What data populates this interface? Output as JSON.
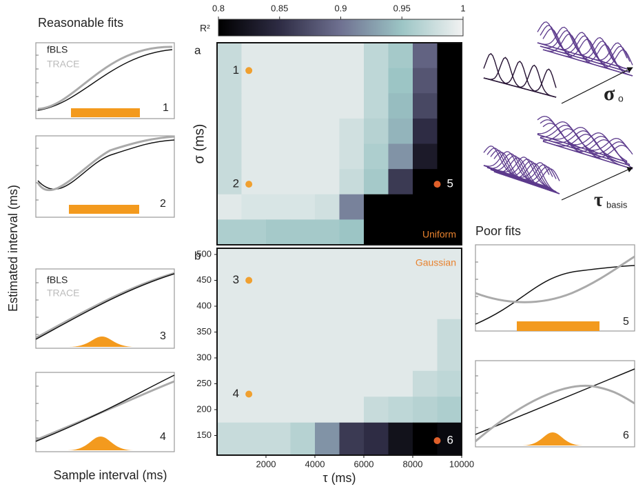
{
  "figure": {
    "left_title": "Reasonable fits",
    "right_title": "Poor fits",
    "y_label": "Estimated interval (ms)",
    "x_label": "Sample interval (ms)",
    "legend_black": "fBLS",
    "legend_gray": "TRACE",
    "panels": [
      "1",
      "2",
      "3",
      "4",
      "5",
      "6"
    ],
    "sigma_symbol": "σ",
    "sigma_sub": "o",
    "tau_symbol": "τ",
    "tau_sub": "basis"
  },
  "chart_data": [
    {
      "type": "colorbar",
      "title": "R²",
      "xlim": [
        0.8,
        1
      ],
      "xticks": [
        0.8,
        0.85,
        0.9,
        0.95,
        1
      ],
      "colors": [
        "#000000",
        "#2e2c44",
        "#6f7191",
        "#9cc5c5",
        "#f2f2f2"
      ]
    },
    {
      "type": "heatmap",
      "label": "a",
      "annotation": "Uniform",
      "annotation_color": "#e8822e",
      "y_label": "σ (ms)",
      "xlim": [
        0,
        10000
      ],
      "values": [
        [
          0.975,
          0.99,
          0.99,
          0.99,
          0.99,
          0.99,
          0.97,
          0.955,
          0.89,
          0.8
        ],
        [
          0.975,
          0.99,
          0.99,
          0.99,
          0.99,
          0.99,
          0.97,
          0.95,
          0.88,
          0.8
        ],
        [
          0.975,
          0.99,
          0.99,
          0.99,
          0.99,
          0.99,
          0.97,
          0.945,
          0.87,
          0.8
        ],
        [
          0.975,
          0.99,
          0.99,
          0.99,
          0.99,
          0.98,
          0.965,
          0.94,
          0.85,
          0.8
        ],
        [
          0.975,
          0.99,
          0.99,
          0.99,
          0.99,
          0.98,
          0.96,
          0.92,
          0.83,
          0.8
        ],
        [
          0.975,
          0.99,
          0.99,
          0.99,
          0.99,
          0.975,
          0.955,
          0.86,
          0.8,
          0.8
        ],
        [
          0.99,
          0.985,
          0.985,
          0.985,
          0.98,
          0.91,
          0.8,
          0.8,
          0.8,
          0.8
        ],
        [
          0.96,
          0.96,
          0.955,
          0.955,
          0.955,
          0.95,
          0.8,
          0.8,
          0.8,
          0.8
        ]
      ],
      "points": [
        {
          "label": "1",
          "x": 1300,
          "row": 1.1,
          "color": "#f0a030"
        },
        {
          "label": "2",
          "x": 1300,
          "row": 5.6,
          "color": "#f0a030"
        },
        {
          "label": "5",
          "x": 9000,
          "row": 5.6,
          "color": "#e0602a"
        }
      ]
    },
    {
      "type": "heatmap",
      "label": "b",
      "annotation": "Gaussian",
      "annotation_color": "#e8822e",
      "x_label": "τ (ms)",
      "xlim": [
        0,
        10000
      ],
      "xticks": [
        2000,
        4000,
        6000,
        8000,
        10000
      ],
      "ylim": [
        112,
        512
      ],
      "yticks": [
        150,
        200,
        250,
        300,
        350,
        400,
        450,
        500
      ],
      "rows": [
        500,
        450,
        400,
        350,
        300,
        250,
        200,
        150
      ],
      "values": [
        [
          0.99,
          0.99,
          0.99,
          0.99,
          0.99,
          0.99,
          0.99,
          0.99,
          0.99,
          0.99
        ],
        [
          0.99,
          0.99,
          0.99,
          0.99,
          0.99,
          0.99,
          0.99,
          0.99,
          0.99,
          0.99
        ],
        [
          0.99,
          0.99,
          0.99,
          0.99,
          0.99,
          0.99,
          0.99,
          0.99,
          0.99,
          0.99
        ],
        [
          0.99,
          0.99,
          0.99,
          0.99,
          0.99,
          0.99,
          0.99,
          0.99,
          0.99,
          0.975
        ],
        [
          0.99,
          0.99,
          0.99,
          0.99,
          0.99,
          0.99,
          0.99,
          0.99,
          0.99,
          0.975
        ],
        [
          0.99,
          0.99,
          0.99,
          0.99,
          0.99,
          0.99,
          0.99,
          0.99,
          0.975,
          0.97
        ],
        [
          0.99,
          0.99,
          0.99,
          0.99,
          0.99,
          0.99,
          0.975,
          0.97,
          0.965,
          0.96
        ],
        [
          0.975,
          0.975,
          0.975,
          0.965,
          0.92,
          0.86,
          0.85,
          0.82,
          0.8,
          0.81
        ]
      ],
      "points": [
        {
          "label": "3",
          "x": 1300,
          "y": 450,
          "color": "#f0a030"
        },
        {
          "label": "4",
          "x": 1300,
          "y": 230,
          "color": "#f0a030"
        },
        {
          "label": "6",
          "x": 9000,
          "y": 140,
          "color": "#e0602a"
        }
      ]
    }
  ]
}
